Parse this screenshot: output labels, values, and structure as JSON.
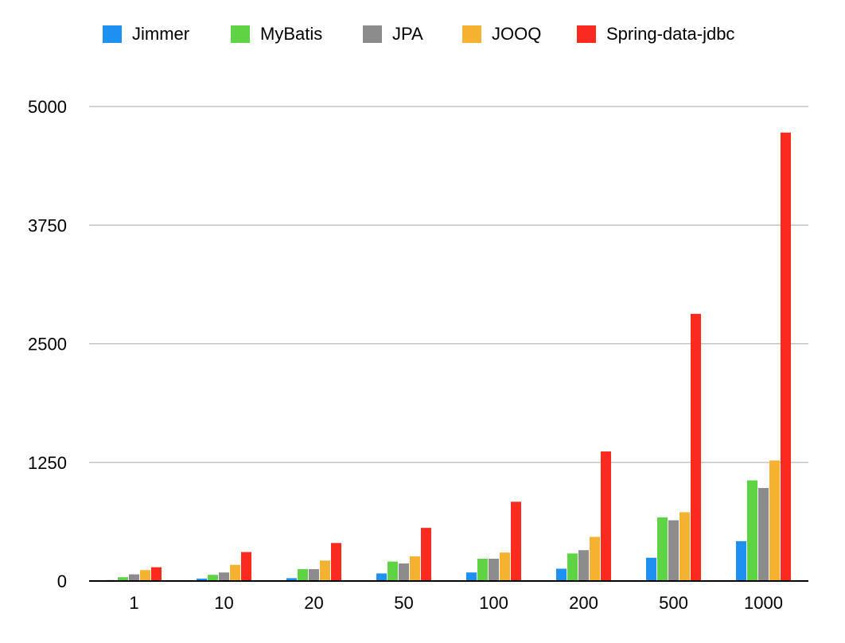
{
  "chart_data": {
    "type": "bar",
    "title": "",
    "xlabel": "",
    "ylabel": "",
    "categories": [
      "1",
      "10",
      "20",
      "50",
      "100",
      "200",
      "500",
      "1000"
    ],
    "series": [
      {
        "name": "Jimmer",
        "color": "#1e90f0",
        "values": [
          10,
          25,
          30,
          80,
          90,
          130,
          245,
          420
        ]
      },
      {
        "name": "MyBatis",
        "color": "#5ed445",
        "values": [
          40,
          65,
          125,
          205,
          235,
          290,
          670,
          1060
        ]
      },
      {
        "name": "JPA",
        "color": "#8c8c8c",
        "values": [
          70,
          90,
          125,
          185,
          235,
          325,
          640,
          980
        ]
      },
      {
        "name": "JOOQ",
        "color": "#f5b230",
        "values": [
          115,
          170,
          215,
          260,
          300,
          465,
          725,
          1270
        ]
      },
      {
        "name": "Spring-data-jdbc",
        "color": "#fb2a1f",
        "values": [
          145,
          305,
          400,
          560,
          835,
          1365,
          2815,
          4725
        ]
      }
    ],
    "ylim": [
      0,
      5000
    ],
    "yticks": [
      "0",
      "1250",
      "2500",
      "3750",
      "5000"
    ],
    "grid": true,
    "legend_position": "top"
  }
}
